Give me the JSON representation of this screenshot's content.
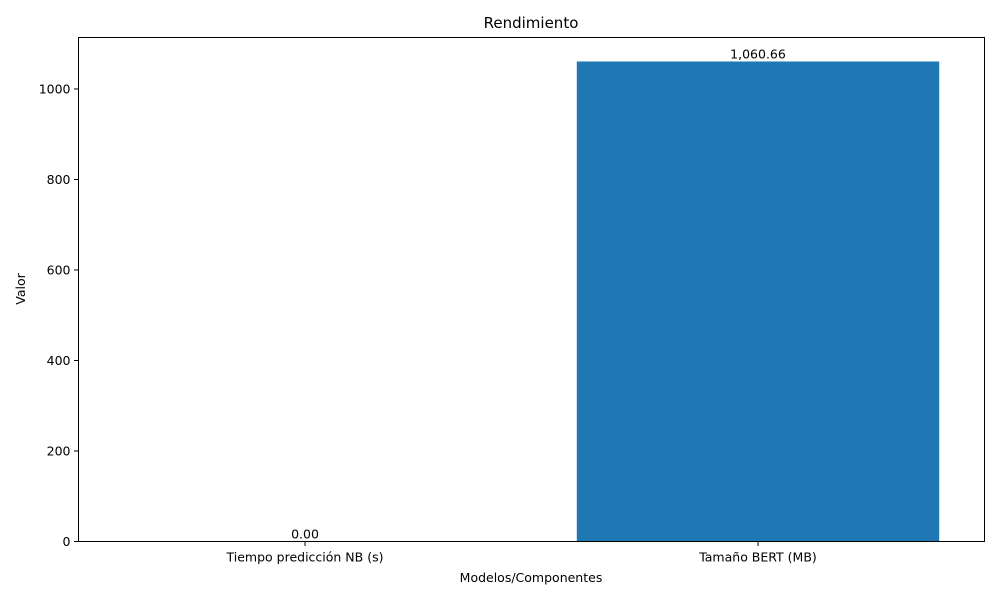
{
  "chart_data": {
    "type": "bar",
    "title": "Rendimiento",
    "xlabel": "Modelos/Componentes",
    "ylabel": "Valor",
    "categories": [
      "Tiempo predicción NB (s)",
      "Tamaño BERT (MB)"
    ],
    "values": [
      0.0,
      1060.66
    ],
    "value_labels": [
      "0.00",
      "1,060.66"
    ],
    "ylim": [
      0,
      1113.69
    ],
    "yticks": [
      0,
      200,
      400,
      600,
      800,
      1000
    ],
    "grid": false,
    "bar_color": "#1f77b4"
  }
}
